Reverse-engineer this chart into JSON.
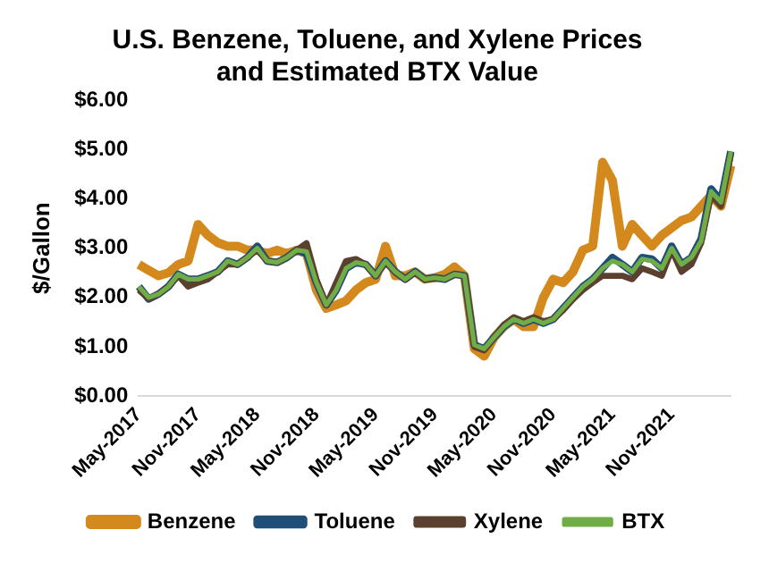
{
  "chart_data": {
    "type": "line",
    "title": "U.S. Benzene, Toluene, and Xylene Prices\nand Estimated BTX Value",
    "ylabel": "$/Gallon",
    "categories": [
      "May-2017",
      null,
      null,
      null,
      null,
      null,
      "Nov-2017",
      null,
      null,
      null,
      null,
      null,
      "May-2018",
      null,
      null,
      null,
      null,
      null,
      "Nov-2018",
      null,
      null,
      null,
      null,
      null,
      "May-2019",
      null,
      null,
      null,
      null,
      null,
      "Nov-2019",
      null,
      null,
      null,
      null,
      null,
      "May-2020",
      null,
      null,
      null,
      null,
      null,
      "Nov-2020",
      null,
      null,
      null,
      null,
      null,
      "May-2021",
      null,
      null,
      null,
      null,
      null,
      "Nov-2021",
      null,
      null,
      null,
      null,
      null,
      null
    ],
    "series": [
      {
        "name": "Benzene",
        "color": "#d4891c",
        "values": [
          2.67,
          2.55,
          2.44,
          2.5,
          2.67,
          2.74,
          3.48,
          3.26,
          3.11,
          3.04,
          3.04,
          2.96,
          2.96,
          2.89,
          2.96,
          2.89,
          2.96,
          2.89,
          2.15,
          1.78,
          1.85,
          1.93,
          2.15,
          2.3,
          2.37,
          3.04,
          2.44,
          2.44,
          2.52,
          2.37,
          2.4,
          2.47,
          2.62,
          2.44,
          0.96,
          0.81,
          1.19,
          1.41,
          1.56,
          1.41,
          1.41,
          2.0,
          2.37,
          2.3,
          2.52,
          2.96,
          3.04,
          4.74,
          4.37,
          3.04,
          3.48,
          3.26,
          3.04,
          3.26,
          3.41,
          3.56,
          3.63,
          3.85,
          4.07,
          3.85,
          4.67
        ]
      },
      {
        "name": "Toluene",
        "color": "#1f4e79",
        "values": [
          2.22,
          1.97,
          2.07,
          2.22,
          2.47,
          2.37,
          2.37,
          2.44,
          2.52,
          2.74,
          2.67,
          2.81,
          3.04,
          2.74,
          2.71,
          2.81,
          2.96,
          2.89,
          2.3,
          1.85,
          2.15,
          2.59,
          2.71,
          2.67,
          2.44,
          2.74,
          2.52,
          2.37,
          2.52,
          2.37,
          2.4,
          2.37,
          2.47,
          2.44,
          1.04,
          0.96,
          1.19,
          1.41,
          1.56,
          1.48,
          1.56,
          1.48,
          1.56,
          1.78,
          2.0,
          2.22,
          2.37,
          2.59,
          2.81,
          2.67,
          2.52,
          2.81,
          2.78,
          2.59,
          3.04,
          2.67,
          2.81,
          3.19,
          4.2,
          3.96,
          4.96
        ]
      },
      {
        "name": "Xylene",
        "color": "#5b4030",
        "values": [
          2.15,
          1.97,
          2.07,
          2.22,
          2.44,
          2.22,
          2.3,
          2.37,
          2.52,
          2.67,
          2.67,
          2.81,
          2.96,
          2.74,
          2.71,
          2.81,
          2.96,
          3.1,
          2.37,
          1.85,
          2.3,
          2.74,
          2.78,
          2.67,
          2.44,
          2.7,
          2.52,
          2.37,
          2.5,
          2.37,
          2.4,
          2.37,
          2.47,
          2.44,
          1.0,
          0.93,
          1.19,
          1.45,
          1.6,
          1.52,
          1.6,
          1.52,
          1.56,
          1.74,
          1.96,
          2.15,
          2.3,
          2.44,
          2.44,
          2.44,
          2.37,
          2.59,
          2.52,
          2.44,
          2.96,
          2.52,
          2.67,
          3.11,
          4.07,
          3.85,
          4.9
        ]
      },
      {
        "name": "BTX",
        "color": "#70ad47",
        "values": [
          2.22,
          2.0,
          2.07,
          2.22,
          2.47,
          2.37,
          2.37,
          2.44,
          2.52,
          2.74,
          2.67,
          2.81,
          3.0,
          2.74,
          2.71,
          2.81,
          2.96,
          2.93,
          2.3,
          1.85,
          2.15,
          2.59,
          2.71,
          2.67,
          2.44,
          2.74,
          2.52,
          2.37,
          2.52,
          2.37,
          2.4,
          2.37,
          2.47,
          2.44,
          1.04,
          0.96,
          1.19,
          1.41,
          1.56,
          1.48,
          1.56,
          1.48,
          1.56,
          1.78,
          2.0,
          2.22,
          2.37,
          2.59,
          2.74,
          2.67,
          2.52,
          2.78,
          2.74,
          2.59,
          3.0,
          2.67,
          2.81,
          3.15,
          4.15,
          3.93,
          4.96
        ]
      }
    ],
    "ylim": [
      0,
      6
    ],
    "yticks": [
      {
        "value": 0,
        "label": "$0.00"
      },
      {
        "value": 1,
        "label": "$1.00"
      },
      {
        "value": 2,
        "label": "$2.00"
      },
      {
        "value": 3,
        "label": "$3.00"
      },
      {
        "value": 4,
        "label": "$4.00"
      },
      {
        "value": 5,
        "label": "$5.00"
      },
      {
        "value": 6,
        "label": "$6.00"
      }
    ],
    "grid": false,
    "legend": "bottom",
    "marker": "none",
    "line_style": "solid"
  }
}
